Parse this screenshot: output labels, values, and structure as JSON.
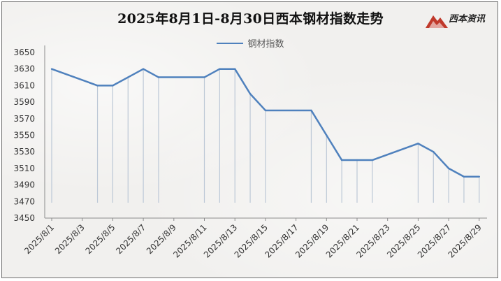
{
  "colors": {
    "series": "#4f81bd",
    "drop": "#bcc8d6",
    "axis": "#8c8c8c"
  },
  "logo": {
    "text": "西本资讯",
    "icon": "mountain-logo-icon"
  },
  "chart_data": {
    "type": "line",
    "title": "2025年8月1日-8月30日西本钢材指数走势",
    "ylim": [
      3450,
      3650
    ],
    "yticks": [
      3450,
      3470,
      3490,
      3510,
      3530,
      3550,
      3570,
      3590,
      3610,
      3630,
      3650
    ],
    "grid": false,
    "legend_position": "top-center",
    "drop_lines": true,
    "x": [
      "2025/8/1",
      "2025/8/4",
      "2025/8/5",
      "2025/8/6",
      "2025/8/7",
      "2025/8/8",
      "2025/8/11",
      "2025/8/12",
      "2025/8/13",
      "2025/8/14",
      "2025/8/15",
      "2025/8/18",
      "2025/8/19",
      "2025/8/20",
      "2025/8/21",
      "2025/8/22",
      "2025/8/25",
      "2025/8/26",
      "2025/8/27",
      "2025/8/28",
      "2025/8/29"
    ],
    "xtick_labels": [
      "2025/8/1",
      "2025/8/3",
      "2025/8/5",
      "2025/8/7",
      "2025/8/9",
      "2025/8/11",
      "2025/8/13",
      "2025/8/15",
      "2025/8/17",
      "2025/8/19",
      "2025/8/21",
      "2025/8/23",
      "2025/8/25",
      "2025/8/27",
      "2025/8/29"
    ],
    "series": [
      {
        "name": "钢材指数",
        "values": [
          3630,
          3610,
          3610,
          3620,
          3630,
          3620,
          3620,
          3630,
          3630,
          3600,
          3580,
          3580,
          3550,
          3520,
          3520,
          3520,
          3540,
          3530,
          3510,
          3500,
          3500
        ]
      }
    ]
  }
}
